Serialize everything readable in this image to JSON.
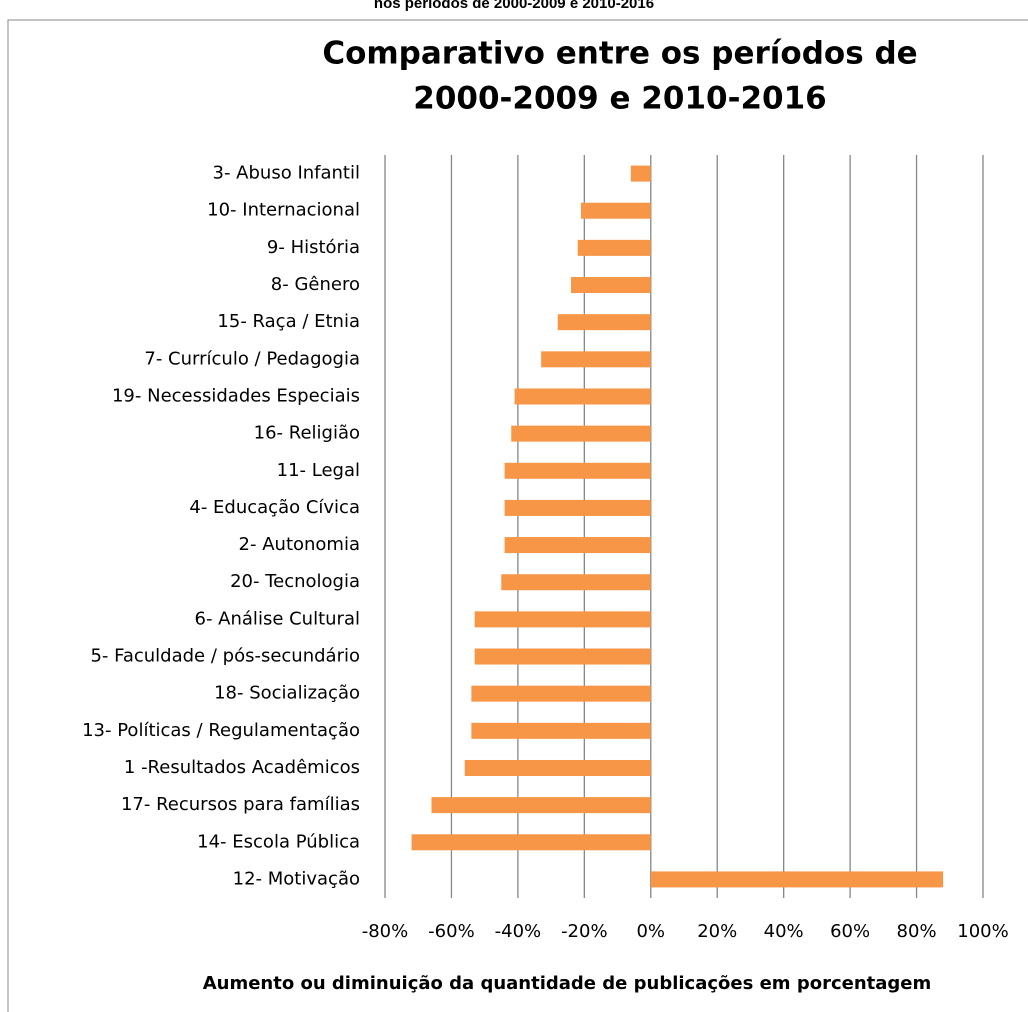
{
  "chart_data": {
    "type": "barh",
    "caption": "nos períodos de 2000-2009 e 2010-2016",
    "title": [
      "Comparativo entre os períodos de",
      "2000-2009 e 2010-2016"
    ],
    "xlabel": "Aumento ou diminuição da quantidade de publicações em porcentagem",
    "categories": [
      "3- Abuso Infantil",
      "10- Internacional",
      "9- História",
      "8- Gênero",
      "15- Raça / Etnia",
      "7- Currículo / Pedagogia",
      "19- Necessidades Especiais",
      "16- Religião",
      "11- Legal",
      "4- Educação Cívica",
      "2- Autonomia",
      "20- Tecnologia",
      "6- Análise Cultural",
      "5- Faculdade / pós-secundário",
      "18- Socialização",
      "13- Políticas / Regulamentação",
      "1 -Resultados Acadêmicos",
      "17- Recursos para famílias",
      "14- Escola Pública",
      "12- Motivação"
    ],
    "values": [
      -6,
      -21,
      -22,
      -24,
      -28,
      -33,
      -41,
      -42,
      -44,
      -44,
      -44,
      -45,
      -53,
      -53,
      -54,
      -54,
      -56,
      -66,
      -72,
      88
    ],
    "color": "#f79646",
    "xlim": [
      -80,
      100
    ],
    "xticks": [
      {
        "value": -80,
        "label": "-80%"
      },
      {
        "value": -60,
        "label": "-60%"
      },
      {
        "value": -40,
        "label": "-40%"
      },
      {
        "value": -20,
        "label": "-20%"
      },
      {
        "value": 0,
        "label": "0%"
      },
      {
        "value": 20,
        "label": "20%"
      },
      {
        "value": 40,
        "label": "40%"
      },
      {
        "value": 60,
        "label": "60%"
      },
      {
        "value": 80,
        "label": "80%"
      },
      {
        "value": 100,
        "label": "100%"
      }
    ],
    "grid": true
  }
}
